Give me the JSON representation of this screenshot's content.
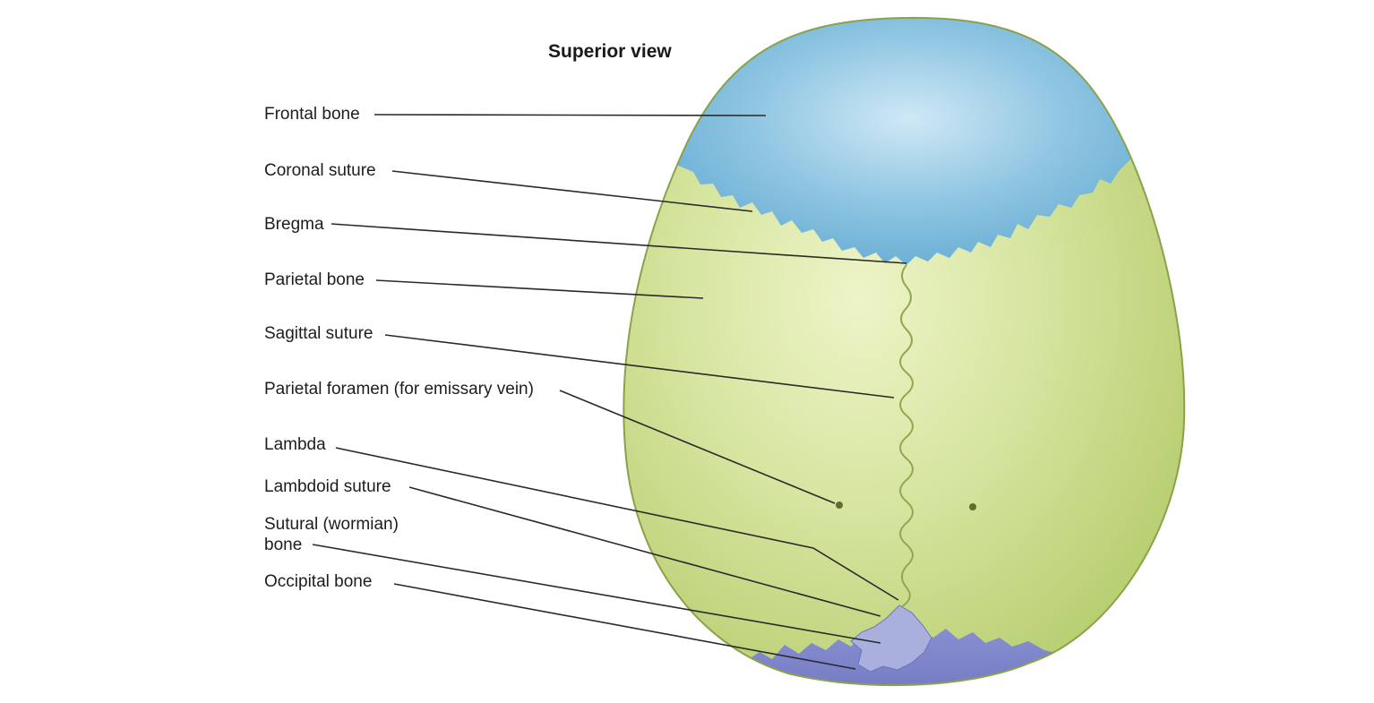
{
  "title": "Superior view",
  "labels": {
    "frontal_bone": "Frontal bone",
    "coronal_suture": "Coronal suture",
    "bregma": "Bregma",
    "parietal_bone": "Parietal bone",
    "sagittal_suture": "Sagittal suture",
    "parietal_foramen": "Parietal foramen (for emissary vein)",
    "lambda": "Lambda",
    "lambdoid_suture": "Lambdoid suture",
    "sutural_bone_line1": "Sutural (wormian)",
    "sutural_bone_line2": "bone",
    "occipital_bone": "Occipital bone"
  },
  "colors": {
    "frontal": "#8ec5e2",
    "parietal": "#d4e49a",
    "occipital": "#9aa0d8",
    "leader": "#2a2a2a"
  }
}
